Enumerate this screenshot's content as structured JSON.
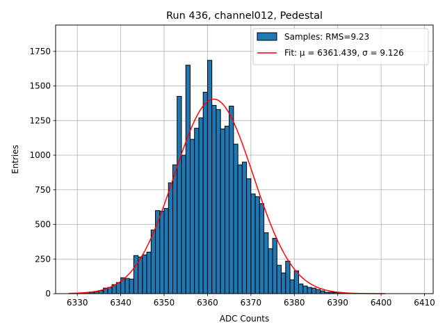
{
  "chart_data": {
    "type": "bar",
    "title": "Run 436, channel012, Pedestal",
    "xlabel": "ADC Counts",
    "ylabel": "Entries",
    "xlim": [
      6325,
      6412
    ],
    "ylim": [
      0,
      1940
    ],
    "xticks": [
      6330,
      6340,
      6350,
      6360,
      6370,
      6380,
      6390,
      6400,
      6410
    ],
    "yticks": [
      0,
      250,
      500,
      750,
      1000,
      1250,
      1500,
      1750
    ],
    "grid": true,
    "legend_position": "top-right",
    "bin_width": 1,
    "histogram": {
      "name": "Samples: RMS=9.23",
      "color": "#1f77b4",
      "edge_color": "#000000",
      "bins": [
        6329,
        6330,
        6331,
        6332,
        6333,
        6334,
        6335,
        6336,
        6337,
        6338,
        6339,
        6340,
        6341,
        6342,
        6343,
        6344,
        6345,
        6346,
        6347,
        6348,
        6349,
        6350,
        6351,
        6352,
        6353,
        6354,
        6355,
        6356,
        6357,
        6358,
        6359,
        6360,
        6361,
        6362,
        6363,
        6364,
        6365,
        6366,
        6367,
        6368,
        6369,
        6370,
        6371,
        6372,
        6373,
        6374,
        6375,
        6376,
        6377,
        6378,
        6379,
        6380,
        6381,
        6382,
        6383,
        6384,
        6385,
        6386,
        6387,
        6388,
        6389,
        6390,
        6391,
        6392,
        6393,
        6394,
        6395
      ],
      "values": [
        2,
        3,
        4,
        6,
        10,
        15,
        22,
        40,
        45,
        65,
        80,
        115,
        110,
        105,
        275,
        265,
        280,
        300,
        460,
        600,
        595,
        615,
        800,
        930,
        1425,
        1000,
        1650,
        1115,
        1195,
        1270,
        1455,
        1685,
        1360,
        1330,
        1190,
        1210,
        1355,
        1080,
        930,
        950,
        830,
        720,
        700,
        650,
        440,
        325,
        400,
        205,
        150,
        235,
        100,
        165,
        70,
        55,
        45,
        40,
        30,
        20,
        10,
        10,
        8,
        5,
        3,
        2,
        1,
        1,
        1
      ]
    },
    "fit": {
      "name": "Fit: μ = 6361.439, σ = 9.126",
      "color": "#ff0000",
      "mu": 6361.439,
      "sigma": 9.126,
      "amplitude": 1405,
      "x_range": [
        6328,
        6401
      ]
    }
  }
}
